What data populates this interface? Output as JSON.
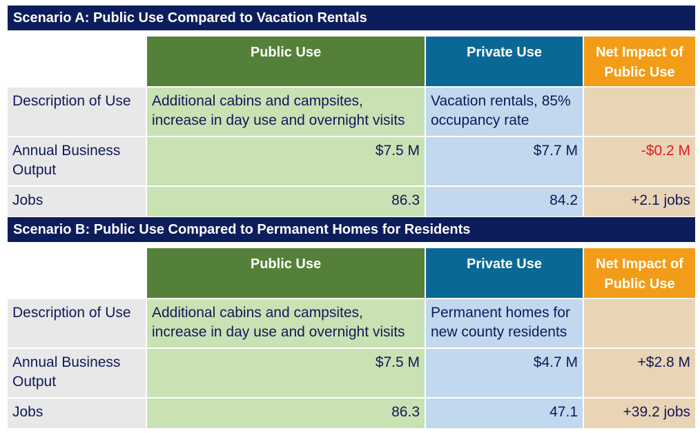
{
  "scenario_a": {
    "title": "Scenario A: Public Use Compared to Vacation Rentals",
    "headers": {
      "public": "Public Use",
      "private": "Private Use",
      "net": "Net Impact of Public Use"
    },
    "rows": {
      "description": {
        "label": "Description of Use",
        "public": "Additional cabins and campsites, increase in day use and overnight visits",
        "private": "Vacation rentals, 85% occupancy rate",
        "net": ""
      },
      "output": {
        "label": "Annual Business Output",
        "public": "$7.5 M",
        "private": "$7.7 M",
        "net": "-$0.2 M"
      },
      "jobs": {
        "label": "Jobs",
        "public": "86.3",
        "private": "84.2",
        "net": "+2.1 jobs"
      }
    }
  },
  "scenario_b": {
    "title": "Scenario B: Public Use Compared to Permanent Homes for Residents",
    "headers": {
      "public": "Public Use",
      "private": "Private Use",
      "net": "Net Impact of Public Use"
    },
    "rows": {
      "description": {
        "label": "Description of Use",
        "public": "Additional cabins and campsites, increase in day use and overnight visits",
        "private": "Permanent homes for new county residents",
        "net": ""
      },
      "output": {
        "label": "Annual Business Output",
        "public": "$7.5 M",
        "private": "$4.7 M",
        "net": "+$2.8 M"
      },
      "jobs": {
        "label": "Jobs",
        "public": "86.3",
        "private": "47.1",
        "net": "+39.2 jobs"
      }
    }
  },
  "colors": {
    "title_bg": "#0d1d5c",
    "public_header": "#55803a",
    "private_header": "#0a6896",
    "net_header": "#f39c17",
    "negative_text": "#e21b1b"
  }
}
